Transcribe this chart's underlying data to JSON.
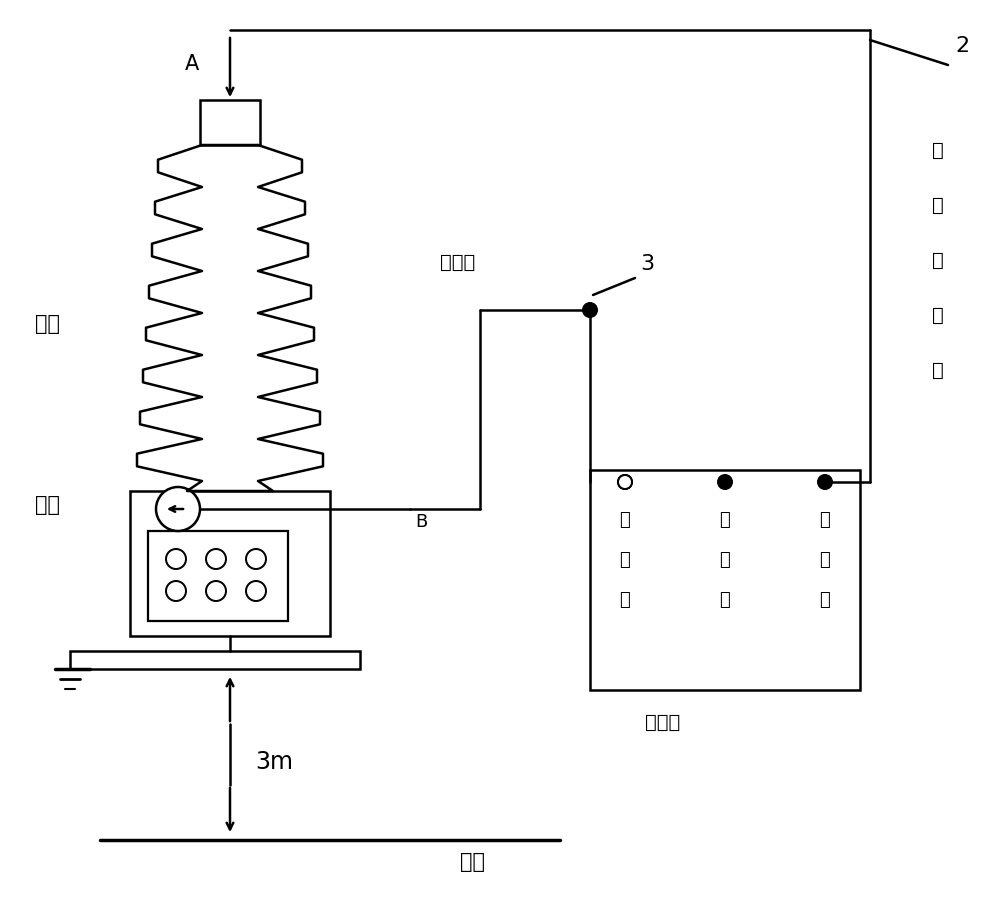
{
  "bg_color": "#ffffff",
  "line_color": "#000000",
  "label_A": "A",
  "label_B": "B",
  "label_2": "2",
  "label_3": "3",
  "label_taogun": "套管",
  "label_mopin": "末屏",
  "label_dimian": "地面",
  "label_3m": "3m",
  "label_celiangxian": "测量线",
  "label_jieyiji": "介损仪",
  "label_gaochu_1": "高",
  "label_gaochu_2": "压",
  "label_gaochu_3": "输",
  "label_gaochu_4": "出",
  "label_gaochu_5": "线",
  "label_xinhao_1": "信",
  "label_xinhao_2": "号",
  "label_xinhao_3": "线",
  "label_pingbi_1": "屏",
  "label_pingbi_2": "蔽",
  "label_pingbi_3": "线",
  "label_gaoya_1": "高",
  "label_gaoya_2": "压",
  "label_gaoya_3": "线",
  "text_color_3m": "#000000"
}
